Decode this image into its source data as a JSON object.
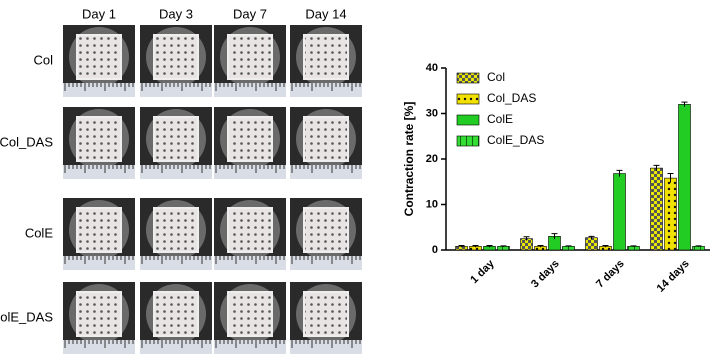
{
  "photo_grid": {
    "columns": [
      "Day 1",
      "Day 3",
      "Day 7",
      "Day 14"
    ],
    "rows": [
      "Col",
      "Col_DAS",
      "ColE",
      "ColE_DAS"
    ]
  },
  "chart_data": {
    "type": "bar",
    "y_label": "Contraction rate [%]",
    "categories": [
      "1 day",
      "3 days",
      "7 days",
      "14 days"
    ],
    "series": [
      {
        "name": "Col",
        "color": "#e8e800",
        "pattern": "checker",
        "values": [
          0.8,
          2.5,
          2.7,
          18
        ],
        "errors": [
          0.2,
          0.4,
          0.3,
          0.6
        ]
      },
      {
        "name": "Col_DAS",
        "color": "#f2e000",
        "pattern": "dots",
        "values": [
          0.8,
          0.8,
          0.8,
          15.8
        ],
        "errors": [
          0.2,
          0.2,
          0.2,
          1.0
        ]
      },
      {
        "name": "ColE",
        "color": "#22cc22",
        "pattern": "solid",
        "values": [
          0.8,
          3,
          16.8,
          32
        ],
        "errors": [
          0.2,
          0.6,
          0.7,
          0.5
        ]
      },
      {
        "name": "ColE_DAS",
        "color": "#33dd33",
        "pattern": "stripes",
        "values": [
          0.8,
          0.8,
          0.8,
          0.8
        ],
        "errors": [
          0.1,
          0.1,
          0.1,
          0.1
        ]
      }
    ],
    "ylim": [
      0,
      40
    ],
    "yticks": [
      0,
      10,
      20,
      30,
      40
    ],
    "legend": "top-left"
  }
}
